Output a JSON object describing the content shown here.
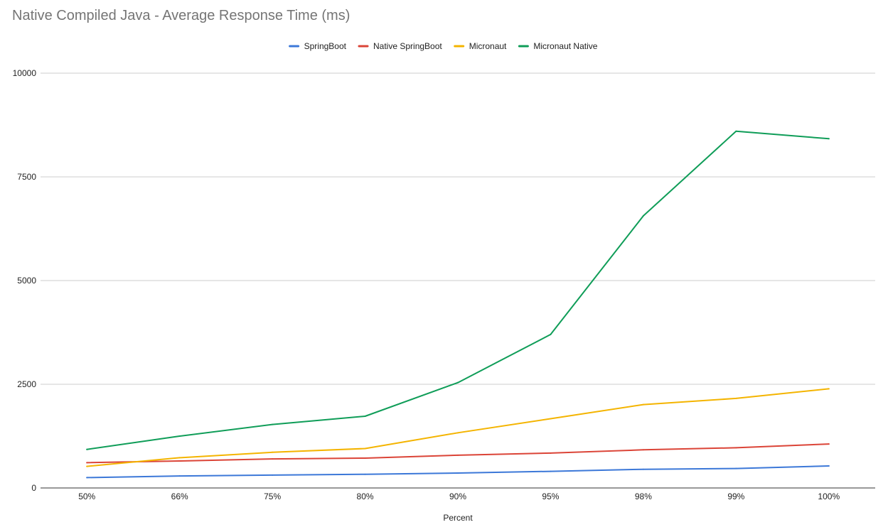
{
  "chart_data": {
    "type": "line",
    "title": "Native Compiled Java - Average Response Time (ms)",
    "xlabel": "Percent",
    "ylabel": "",
    "categories": [
      "50%",
      "66%",
      "75%",
      "80%",
      "90%",
      "95%",
      "98%",
      "99%",
      "100%"
    ],
    "ylim": [
      0,
      10000
    ],
    "yticks": [
      0,
      2500,
      5000,
      7500,
      10000
    ],
    "grid": true,
    "legend_position": "top-center",
    "series": [
      {
        "name": "SpringBoot",
        "color": "#3c78d8",
        "values": [
          250,
          290,
          310,
          330,
          360,
          400,
          450,
          470,
          530
        ]
      },
      {
        "name": "Native SpringBoot",
        "color": "#db4437",
        "values": [
          610,
          650,
          700,
          720,
          790,
          840,
          920,
          970,
          1060
        ]
      },
      {
        "name": "Micronaut",
        "color": "#f4b400",
        "values": [
          520,
          730,
          860,
          950,
          1330,
          1670,
          2010,
          2160,
          2390
        ]
      },
      {
        "name": "Micronaut Native",
        "color": "#0f9d58",
        "values": [
          930,
          1250,
          1530,
          1730,
          2540,
          3700,
          6560,
          8600,
          8420
        ]
      }
    ]
  }
}
